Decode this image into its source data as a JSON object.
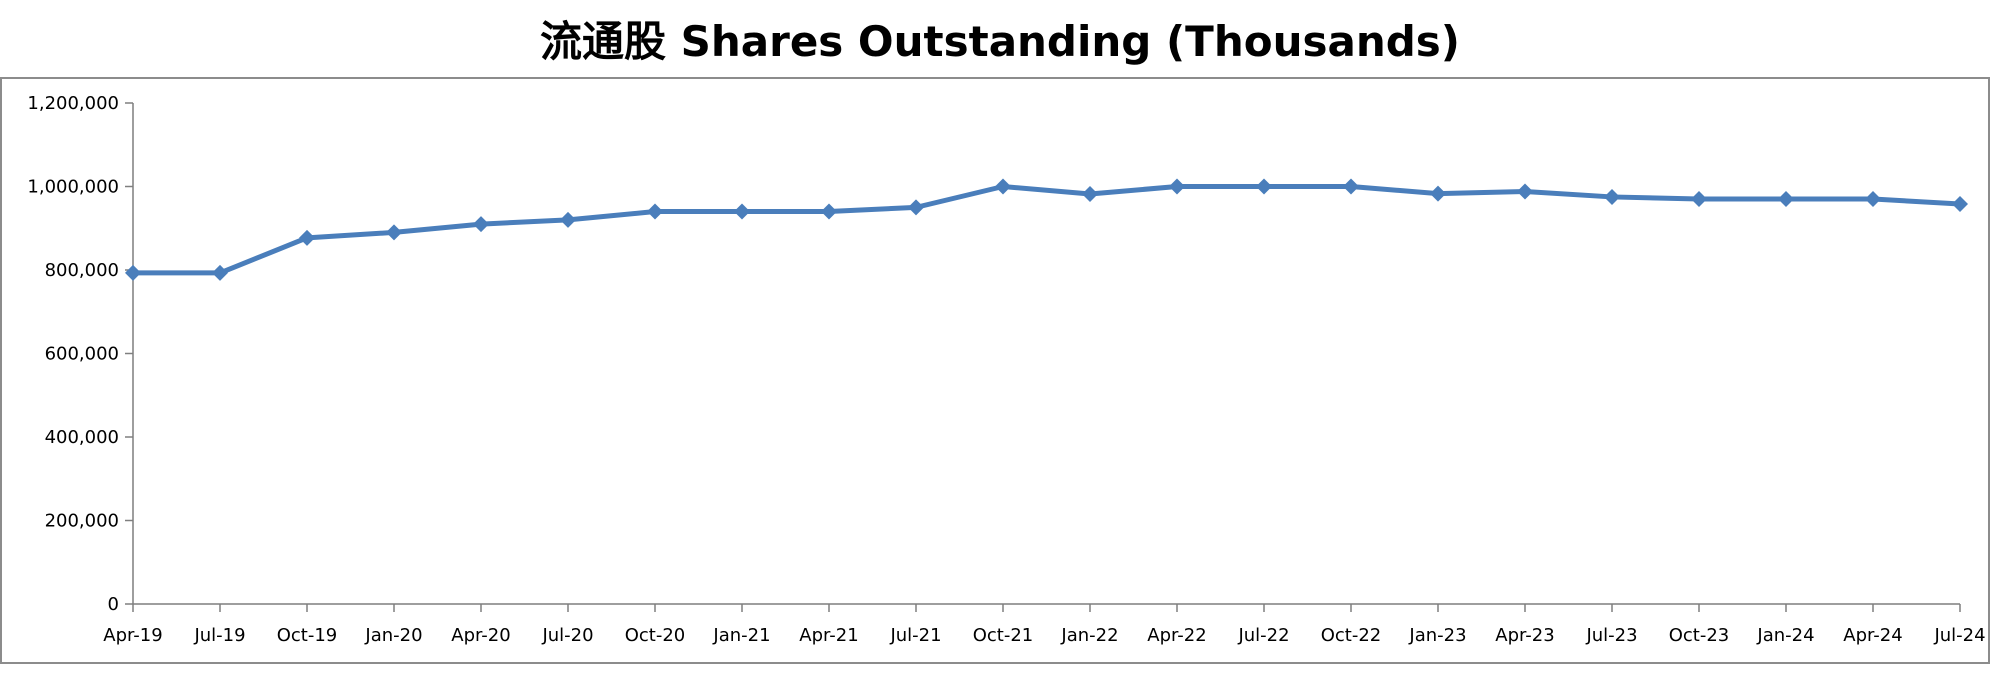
{
  "chart_data": {
    "type": "line",
    "title": "流通股 Shares Outstanding (Thousands)",
    "xlabel": "",
    "ylabel": "",
    "ylim": [
      0,
      1200000
    ],
    "yticks": [
      0,
      200000,
      400000,
      600000,
      800000,
      1000000,
      1200000
    ],
    "ytick_labels": [
      "0",
      "200,000",
      "400,000",
      "600,000",
      "800,000",
      "1,000,000",
      "1,200,000"
    ],
    "categories": [
      "Apr-19",
      "Jul-19",
      "Oct-19",
      "Jan-20",
      "Apr-20",
      "Jul-20",
      "Oct-20",
      "Jan-21",
      "Apr-21",
      "Jul-21",
      "Oct-21",
      "Jan-22",
      "Apr-22",
      "Jul-22",
      "Oct-22",
      "Jan-23",
      "Apr-23",
      "Jul-23",
      "Oct-23",
      "Jan-24",
      "Apr-24",
      "Jul-24"
    ],
    "series": [
      {
        "color": "#4a7ebb",
        "marker": "diamond",
        "values": [
          793000,
          793000,
          877000,
          890000,
          910000,
          920000,
          940000,
          940000,
          940000,
          950000,
          1000000,
          982000,
          1000000,
          1000000,
          1000000,
          983000,
          988000,
          975000,
          970000,
          970000,
          970000,
          958000
        ]
      }
    ],
    "grid": false,
    "legend": "none"
  }
}
